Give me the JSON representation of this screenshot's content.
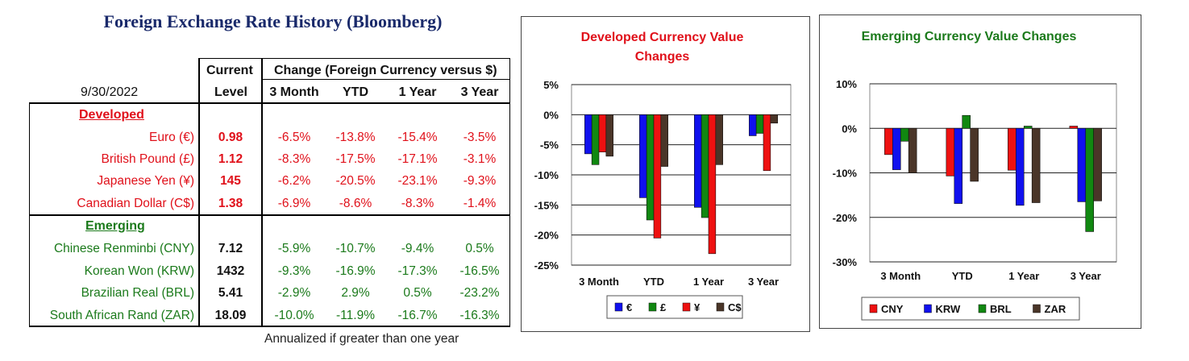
{
  "title": "Foreign Exchange Rate History (Bloomberg)",
  "table": {
    "date": "9/30/2022",
    "current_header_line1": "Current",
    "current_header_line2": "Level",
    "change_header": "Change (Foreign Currency versus $)",
    "periods": [
      "3 Month",
      "YTD",
      "1 Year",
      "3 Year"
    ],
    "developed_label": "Developed",
    "emerging_label": "Emerging",
    "developed": [
      {
        "name": "Euro (€)",
        "level": "0.98",
        "changes": [
          "-6.5%",
          "-13.8%",
          "-15.4%",
          "-3.5%"
        ]
      },
      {
        "name": "British Pound (£)",
        "level": "1.12",
        "changes": [
          "-8.3%",
          "-17.5%",
          "-17.1%",
          "-3.1%"
        ]
      },
      {
        "name": "Japanese Yen (¥)",
        "level": "145",
        "changes": [
          "-6.2%",
          "-20.5%",
          "-23.1%",
          "-9.3%"
        ]
      },
      {
        "name": "Canadian Dollar (C$)",
        "level": "1.38",
        "changes": [
          "-6.9%",
          "-8.6%",
          "-8.3%",
          "-1.4%"
        ]
      }
    ],
    "emerging": [
      {
        "name": "Chinese Renminbi (CNY)",
        "level": "7.12",
        "changes": [
          "-5.9%",
          "-10.7%",
          "-9.4%",
          "0.5%"
        ]
      },
      {
        "name": "Korean Won (KRW)",
        "level": "1432",
        "changes": [
          "-9.3%",
          "-16.9%",
          "-17.3%",
          "-16.5%"
        ]
      },
      {
        "name": "Brazilian Real (BRL)",
        "level": "5.41",
        "changes": [
          "-2.9%",
          "2.9%",
          "0.5%",
          "-23.2%"
        ]
      },
      {
        "name": "South African Rand (ZAR)",
        "level": "18.09",
        "changes": [
          "-10.0%",
          "-11.9%",
          "-16.7%",
          "-16.3%"
        ]
      }
    ],
    "footnote": "Annualized if greater than one year"
  },
  "chart_data": [
    {
      "type": "bar",
      "title": "Developed Currency Value Changes",
      "title_color": "#e0101a",
      "categories": [
        "3 Month",
        "YTD",
        "1 Year",
        "3 Year"
      ],
      "ylim": [
        -25,
        5
      ],
      "yticks": [
        5,
        0,
        -5,
        -10,
        -15,
        -20,
        -25
      ],
      "tick_labels": [
        "5%",
        "0%",
        "-5%",
        "-10%",
        "-15%",
        "-20%",
        "-25%"
      ],
      "legend": "bottom",
      "grid": true,
      "series": [
        {
          "name": "€",
          "color": "#1010ee",
          "values": [
            -6.5,
            -13.8,
            -15.4,
            -3.5
          ]
        },
        {
          "name": "£",
          "color": "#118811",
          "values": [
            -8.3,
            -17.5,
            -17.1,
            -3.1
          ]
        },
        {
          "name": "¥",
          "color": "#ee1111",
          "values": [
            -6.2,
            -20.5,
            -23.1,
            -9.3
          ]
        },
        {
          "name": "C$",
          "color": "#4a3528",
          "values": [
            -6.9,
            -8.6,
            -8.3,
            -1.4
          ]
        }
      ]
    },
    {
      "type": "bar",
      "title": "Emerging Currency Value Changes",
      "title_color": "#1b7a1b",
      "categories": [
        "3 Month",
        "YTD",
        "1 Year",
        "3 Year"
      ],
      "ylim": [
        -30,
        10
      ],
      "yticks": [
        10,
        0,
        -10,
        -20,
        -30
      ],
      "tick_labels": [
        "10%",
        "0%",
        "-10%",
        "-20%",
        "-30%"
      ],
      "legend": "bottom",
      "grid": true,
      "series": [
        {
          "name": "CNY",
          "color": "#ee1111",
          "values": [
            -5.9,
            -10.7,
            -9.4,
            0.5
          ]
        },
        {
          "name": "KRW",
          "color": "#1010ee",
          "values": [
            -9.3,
            -16.9,
            -17.3,
            -16.5
          ]
        },
        {
          "name": "BRL",
          "color": "#118811",
          "values": [
            -2.9,
            2.9,
            0.5,
            -23.2
          ]
        },
        {
          "name": "ZAR",
          "color": "#4a3528",
          "values": [
            -10.0,
            -11.9,
            -16.7,
            -16.3
          ]
        }
      ]
    }
  ]
}
